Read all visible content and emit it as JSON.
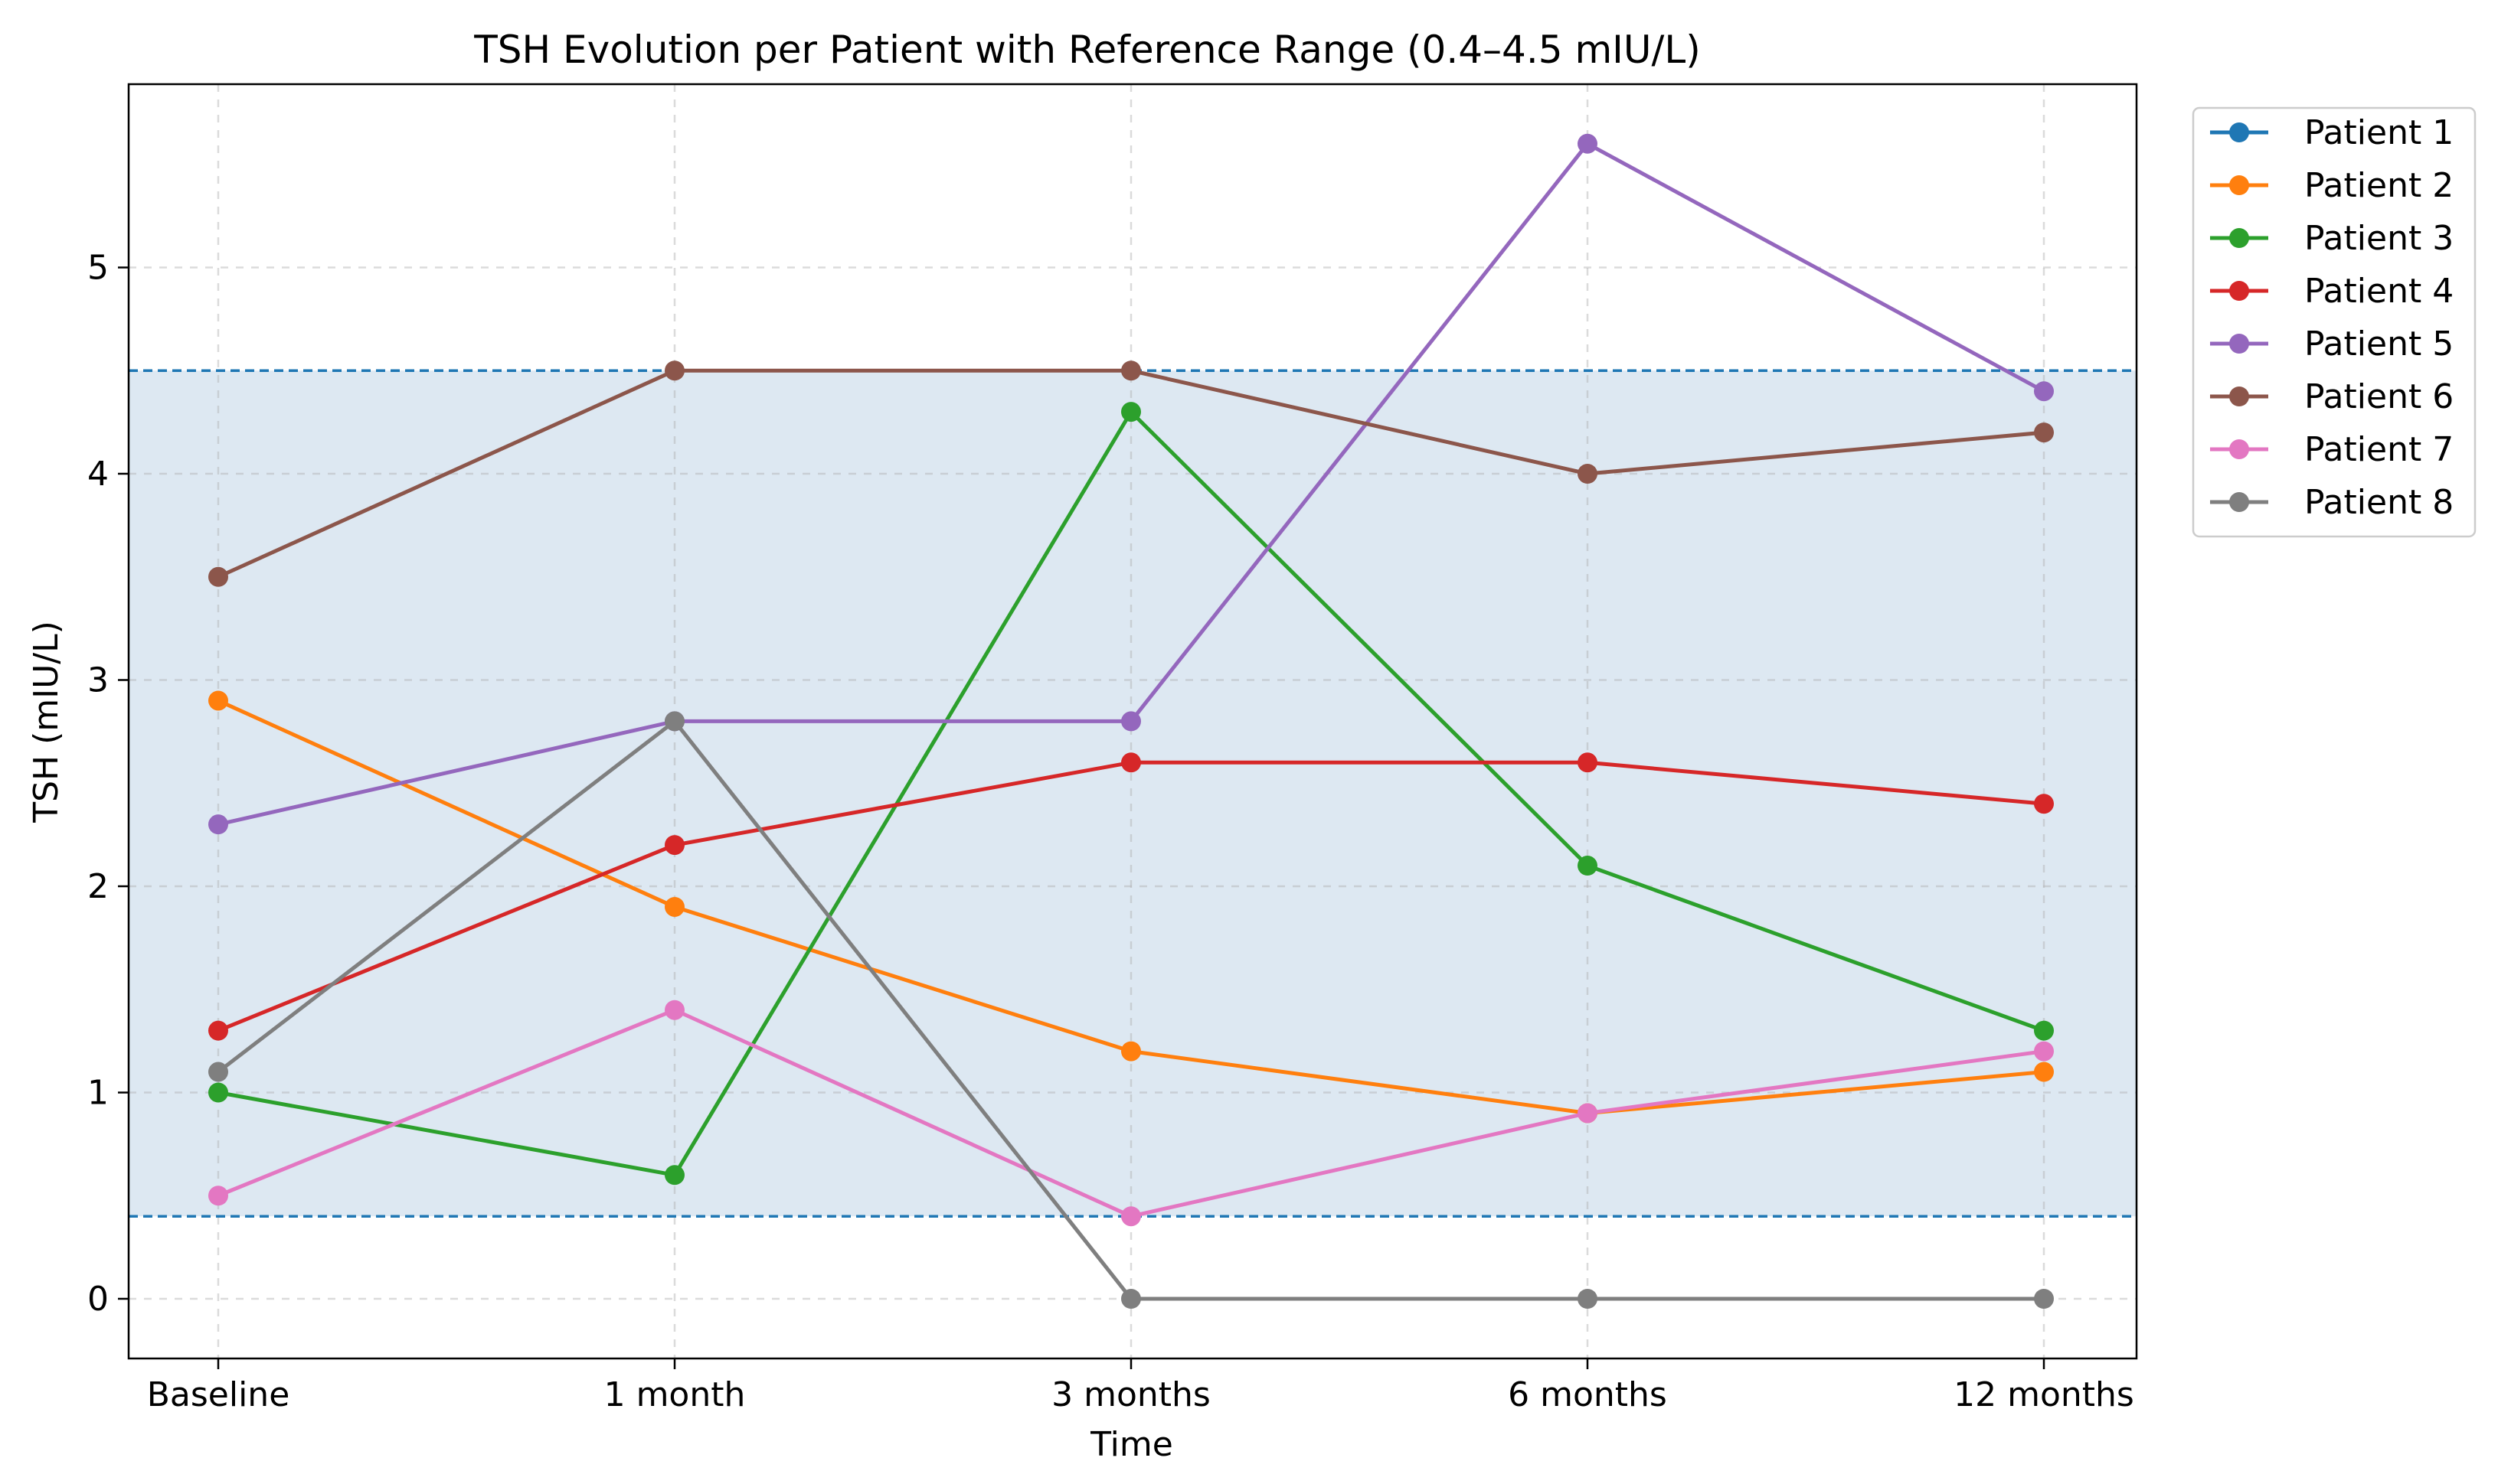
{
  "chart_data": {
    "type": "line",
    "title": "TSH Evolution per Patient with Reference Range (0.4–4.5 mIU/L)",
    "xlabel": "Time",
    "ylabel": "TSH (mIU/L)",
    "categories": [
      "Baseline",
      "1 month",
      "3 months",
      "6 months",
      "12 months"
    ],
    "ylim": [
      -0.28,
      5.9
    ],
    "yticks": [
      0,
      1,
      2,
      3,
      4,
      5
    ],
    "grid": true,
    "legend_position": "outside-right-top",
    "reference_range": {
      "low": 0.4,
      "high": 4.5,
      "fill_color": "#dde8f2",
      "line_color": "#1f77b4"
    },
    "series": [
      {
        "name": "Patient 1",
        "color": "#1f77b4",
        "values": [
          null,
          null,
          null,
          null,
          null
        ]
      },
      {
        "name": "Patient 2",
        "color": "#ff7f0e",
        "values": [
          2.9,
          1.9,
          1.2,
          0.9,
          1.1
        ]
      },
      {
        "name": "Patient 3",
        "color": "#2ca02c",
        "values": [
          1.0,
          0.6,
          4.3,
          2.1,
          1.3
        ]
      },
      {
        "name": "Patient 4",
        "color": "#d62728",
        "values": [
          1.3,
          2.2,
          2.6,
          2.6,
          2.4
        ]
      },
      {
        "name": "Patient 5",
        "color": "#9467bd",
        "values": [
          2.3,
          2.8,
          2.8,
          5.6,
          4.4
        ]
      },
      {
        "name": "Patient 6",
        "color": "#8c564b",
        "values": [
          3.5,
          4.5,
          4.5,
          4.0,
          4.2
        ]
      },
      {
        "name": "Patient 7",
        "color": "#e377c2",
        "values": [
          0.5,
          1.4,
          0.4,
          0.9,
          1.2
        ]
      },
      {
        "name": "Patient 8",
        "color": "#7f7f7f",
        "values": [
          1.1,
          2.8,
          0.0,
          0.0,
          0.0
        ]
      }
    ]
  }
}
